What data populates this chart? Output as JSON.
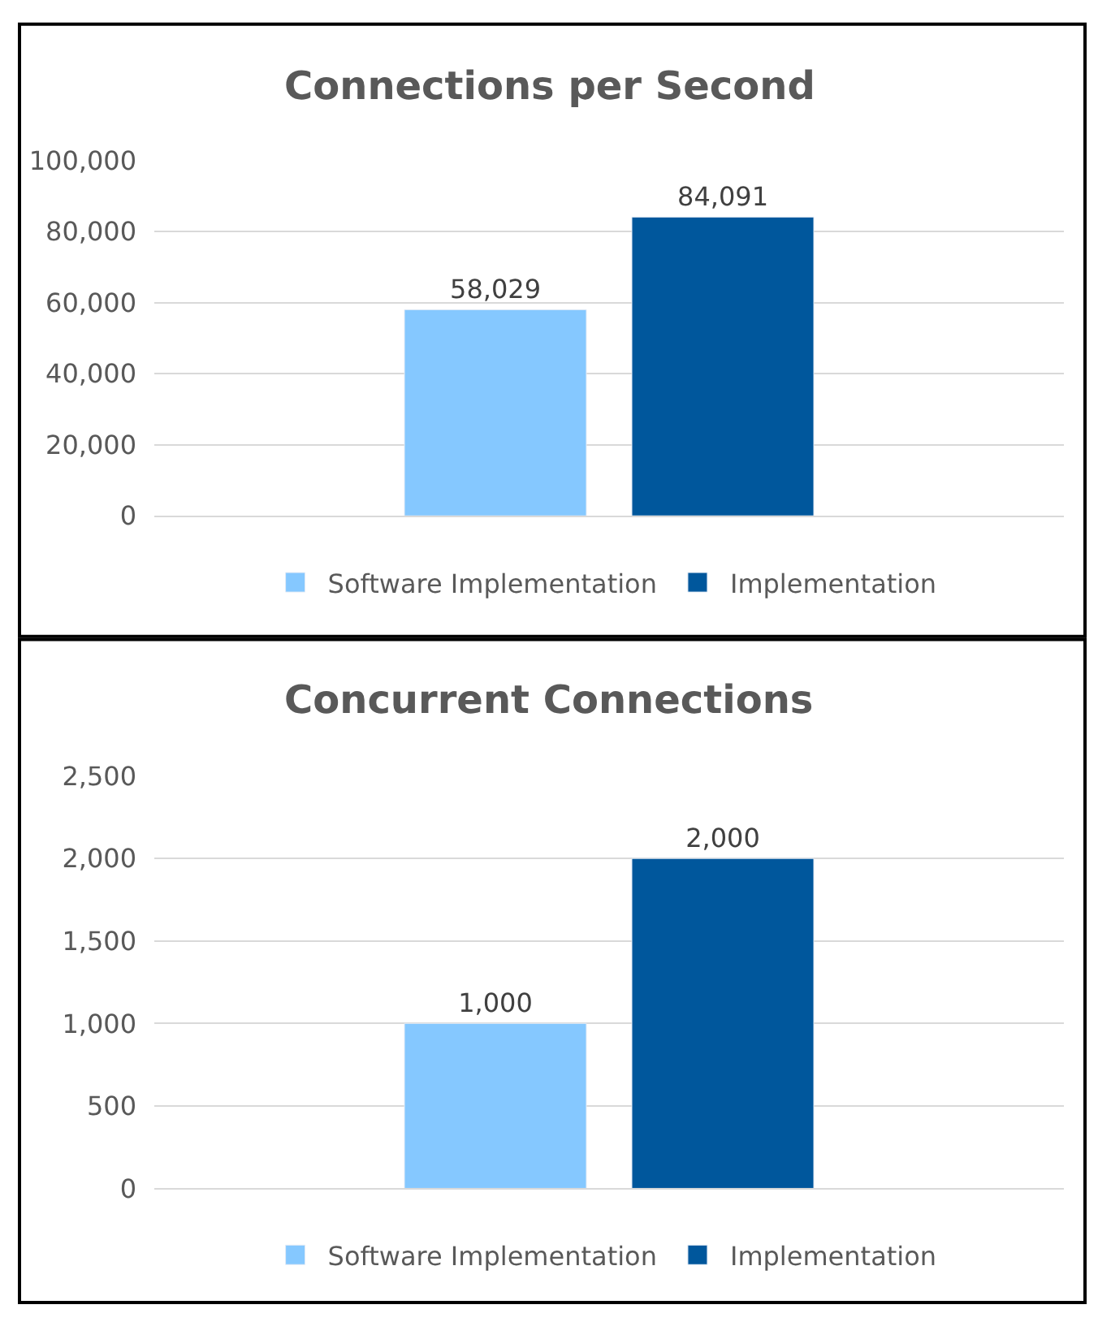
{
  "chart_data": [
    {
      "type": "bar",
      "title": "Connections per Second",
      "categories": [
        null
      ],
      "series": [
        {
          "name": "Software Implementation",
          "color": "#85c8ff",
          "values": [
            58029
          ],
          "value_labels": [
            "58,029"
          ]
        },
        {
          "name": "Implementation",
          "color": "#00579c",
          "values": [
            84091
          ],
          "value_labels": [
            "84,091"
          ]
        }
      ],
      "ylim": [
        0,
        100000
      ],
      "yticks": [
        {
          "value": 0,
          "label": "0"
        },
        {
          "value": 20000,
          "label": "20,000"
        },
        {
          "value": 40000,
          "label": "40,000"
        },
        {
          "value": 60000,
          "label": "60,000"
        },
        {
          "value": 80000,
          "label": "80,000"
        },
        {
          "value": 100000,
          "label": "100,000"
        }
      ],
      "grid": "y",
      "legend": "bottom",
      "tick_labels": "y"
    },
    {
      "type": "bar",
      "title": "Concurrent Connections",
      "categories": [
        null
      ],
      "series": [
        {
          "name": "Software Implementation",
          "color": "#85c8ff",
          "values": [
            1000
          ],
          "value_labels": [
            "1,000"
          ]
        },
        {
          "name": "Implementation",
          "color": "#00579c",
          "values": [
            2000
          ],
          "value_labels": [
            "2,000"
          ]
        }
      ],
      "ylim": [
        0,
        2500
      ],
      "yticks": [
        {
          "value": 0,
          "label": "0"
        },
        {
          "value": 500,
          "label": "500"
        },
        {
          "value": 1000,
          "label": "1,000"
        },
        {
          "value": 1500,
          "label": "1,500"
        },
        {
          "value": 2000,
          "label": "2,000"
        },
        {
          "value": 2500,
          "label": "2,500"
        }
      ],
      "grid": "y",
      "legend": "bottom",
      "tick_labels": "y"
    }
  ]
}
